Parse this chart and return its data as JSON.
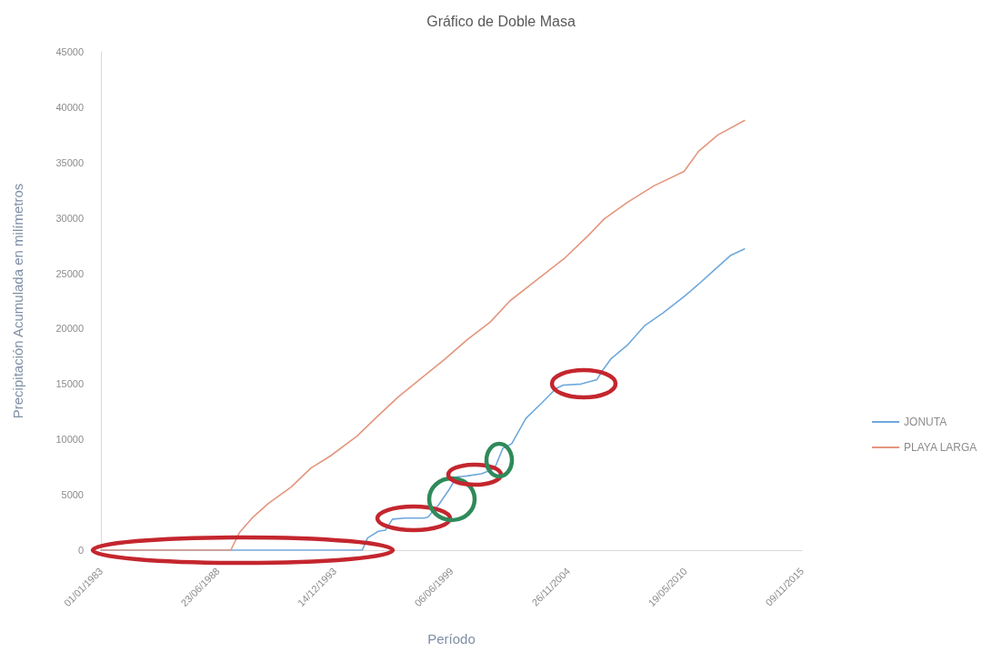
{
  "chart_data": {
    "type": "line",
    "title": "Gráfico de Doble Masa",
    "xlabel": "Período",
    "ylabel": "Precipitación Acumulada en milímetros",
    "xlim": [
      "1983-01-01",
      "2015-11-09"
    ],
    "xticks": [
      {
        "value": "1983-01-01",
        "label": "01/01/1983"
      },
      {
        "value": "1988-06-23",
        "label": "23/06/1988"
      },
      {
        "value": "1993-12-14",
        "label": "14/12/1993"
      },
      {
        "value": "1999-06-06",
        "label": "06/06/1999"
      },
      {
        "value": "2004-11-26",
        "label": "26/11/2004"
      },
      {
        "value": "2010-05-19",
        "label": "19/05/2010"
      },
      {
        "value": "2015-11-09",
        "label": "09/11/2015"
      }
    ],
    "ylim": [
      0,
      45000
    ],
    "yticks": [
      0,
      5000,
      10000,
      15000,
      20000,
      25000,
      30000,
      35000,
      40000,
      45000
    ],
    "grid": false,
    "legend": "right",
    "series": [
      {
        "name": "JONUTA",
        "color": "#6fa8dc",
        "x": [
          "1983-01",
          "1995-04",
          "1995-07",
          "1996-01",
          "1996-05",
          "1996-09",
          "1997-04",
          "1998-03",
          "1998-05",
          "1998-11",
          "1999-05",
          "1999-09",
          "2000-03",
          "2000-11",
          "2001-04",
          "2001-07",
          "2001-11",
          "2002-04",
          "2002-12",
          "2003-09",
          "2004-05",
          "2004-09",
          "2005-07",
          "2006-04",
          "2006-07",
          "2006-12",
          "2007-09",
          "2008-07",
          "2009-05",
          "2010-05",
          "2011-01",
          "2011-10",
          "2012-07",
          "2013-03"
        ],
        "values": [
          0,
          0,
          1100,
          1700,
          1800,
          2800,
          2900,
          2900,
          3000,
          4100,
          5500,
          6600,
          6700,
          6900,
          7200,
          7600,
          9200,
          9600,
          11900,
          13300,
          14600,
          14900,
          15000,
          15400,
          16200,
          17300,
          18500,
          20300,
          21400,
          22900,
          24000,
          25300,
          26600,
          27200
        ]
      },
      {
        "name": "PLAYA LARGA",
        "color": "#e4967e",
        "x": [
          "1983-01",
          "1989-02",
          "1989-07",
          "1990-02",
          "1990-11",
          "1991-12",
          "1992-11",
          "1993-10",
          "1995-01",
          "1995-12",
          "1996-12",
          "1998-01",
          "1999-02",
          "2000-03",
          "2001-04",
          "2002-03",
          "2003-03",
          "2004-10",
          "2005-11",
          "2006-08",
          "2007-09",
          "2008-12",
          "2010-05",
          "2011-01",
          "2011-12",
          "2013-03"
        ],
        "values": [
          0,
          0,
          1600,
          2900,
          4200,
          5700,
          7400,
          8500,
          10300,
          12000,
          13800,
          15500,
          17200,
          19000,
          20600,
          22500,
          24000,
          26400,
          28400,
          29900,
          31400,
          32900,
          34200,
          36000,
          37500,
          38800
        ]
      }
    ]
  }
}
